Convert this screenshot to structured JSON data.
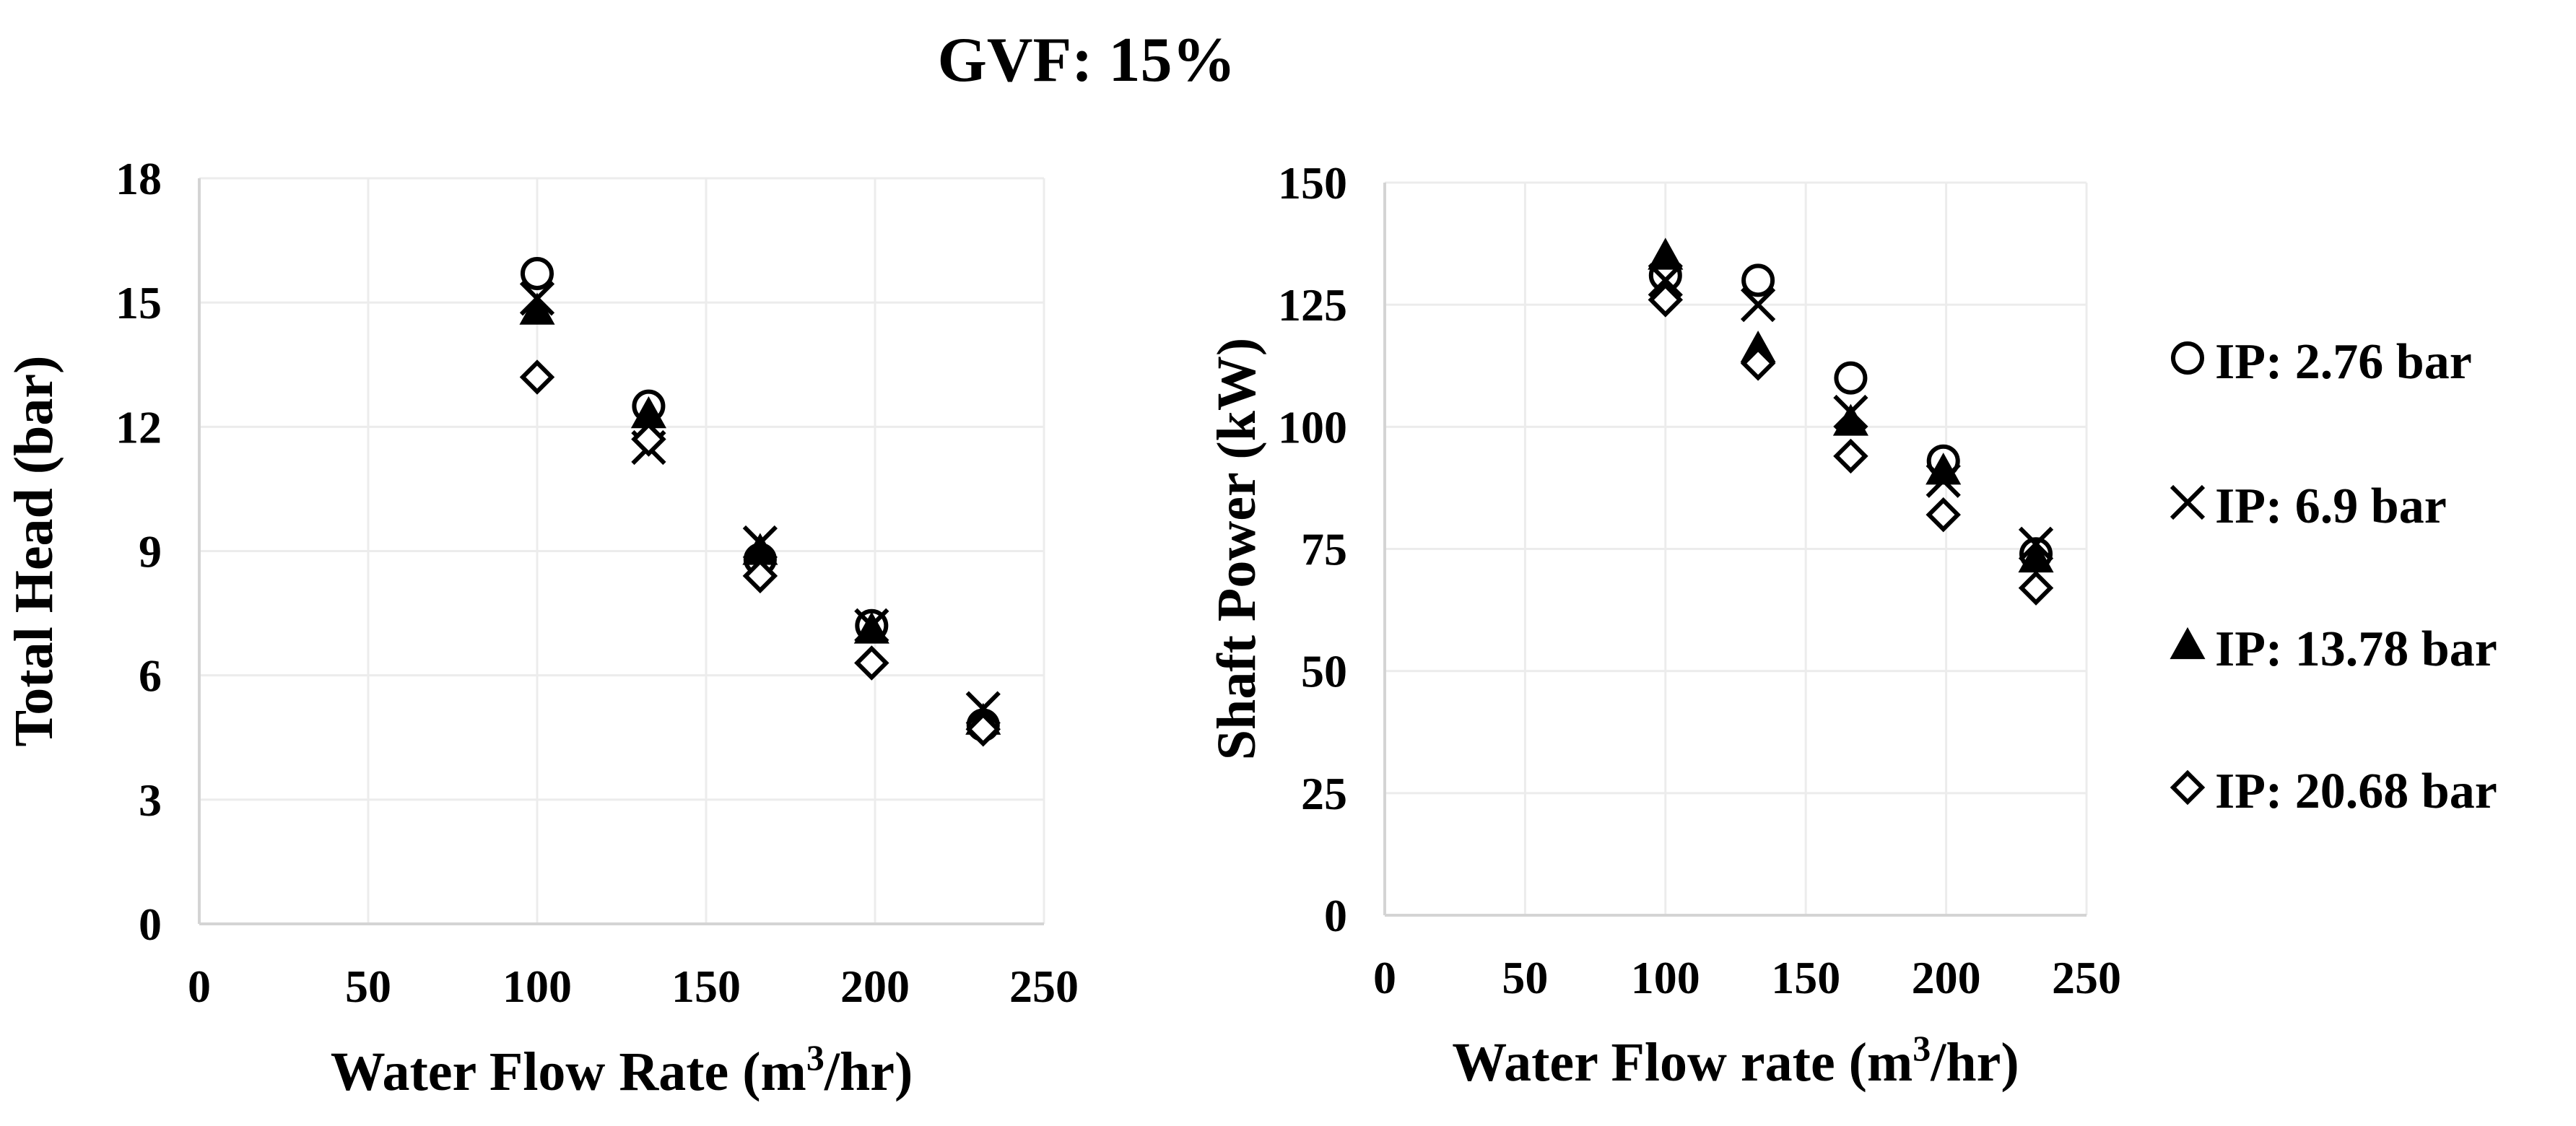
{
  "title": "GVF: 15%",
  "legend": [
    {
      "label": "IP: 2.76 bar",
      "marker": "circle-open"
    },
    {
      "label": "IP: 6.9 bar",
      "marker": "x"
    },
    {
      "label": "IP: 13.78 bar",
      "marker": "triangle-filled"
    },
    {
      "label": "IP: 20.68 bar",
      "marker": "diamond-open"
    }
  ],
  "chart_data": [
    {
      "type": "scatter",
      "xlabel": "Water Flow Rate (m³/hr)",
      "ylabel": "Total Head (bar)",
      "xlim": [
        0,
        250
      ],
      "ylim": [
        0,
        18
      ],
      "xticks": [
        0,
        50,
        100,
        150,
        200,
        250
      ],
      "yticks": [
        0,
        3,
        6,
        9,
        12,
        15,
        18
      ],
      "grid": true,
      "x": [
        100,
        133,
        166,
        199,
        232
      ],
      "series": [
        {
          "name": "IP: 2.76 bar",
          "values": [
            15.7,
            12.5,
            8.8,
            7.2,
            4.8
          ]
        },
        {
          "name": "IP: 6.9 bar",
          "values": [
            15.1,
            11.5,
            9.2,
            7.2,
            5.2
          ]
        },
        {
          "name": "IP: 13.78 bar",
          "values": [
            14.8,
            12.3,
            9.0,
            7.1,
            4.9
          ]
        },
        {
          "name": "IP: 20.68 bar",
          "values": [
            13.2,
            11.7,
            8.4,
            6.3,
            4.7
          ]
        }
      ]
    },
    {
      "type": "scatter",
      "xlabel": "Water Flow rate (m³/hr)",
      "ylabel": "Shaft Power (kW)",
      "xlim": [
        0,
        250
      ],
      "ylim": [
        0,
        150
      ],
      "xticks": [
        0,
        50,
        100,
        150,
        200,
        250
      ],
      "yticks": [
        0,
        25,
        50,
        75,
        100,
        125,
        150
      ],
      "grid": true,
      "legend_position": "right",
      "x": [
        100,
        133,
        166,
        199,
        232
      ],
      "series": [
        {
          "name": "IP: 2.76 bar",
          "values": [
            131,
            130,
            110,
            93,
            74
          ]
        },
        {
          "name": "IP: 6.9 bar",
          "values": [
            130,
            125,
            103,
            89,
            76
          ]
        },
        {
          "name": "IP: 13.78 bar",
          "values": [
            135,
            116,
            101,
            91,
            73
          ]
        },
        {
          "name": "IP: 20.68 bar",
          "values": [
            126,
            113,
            94,
            82,
            67
          ]
        }
      ]
    }
  ]
}
